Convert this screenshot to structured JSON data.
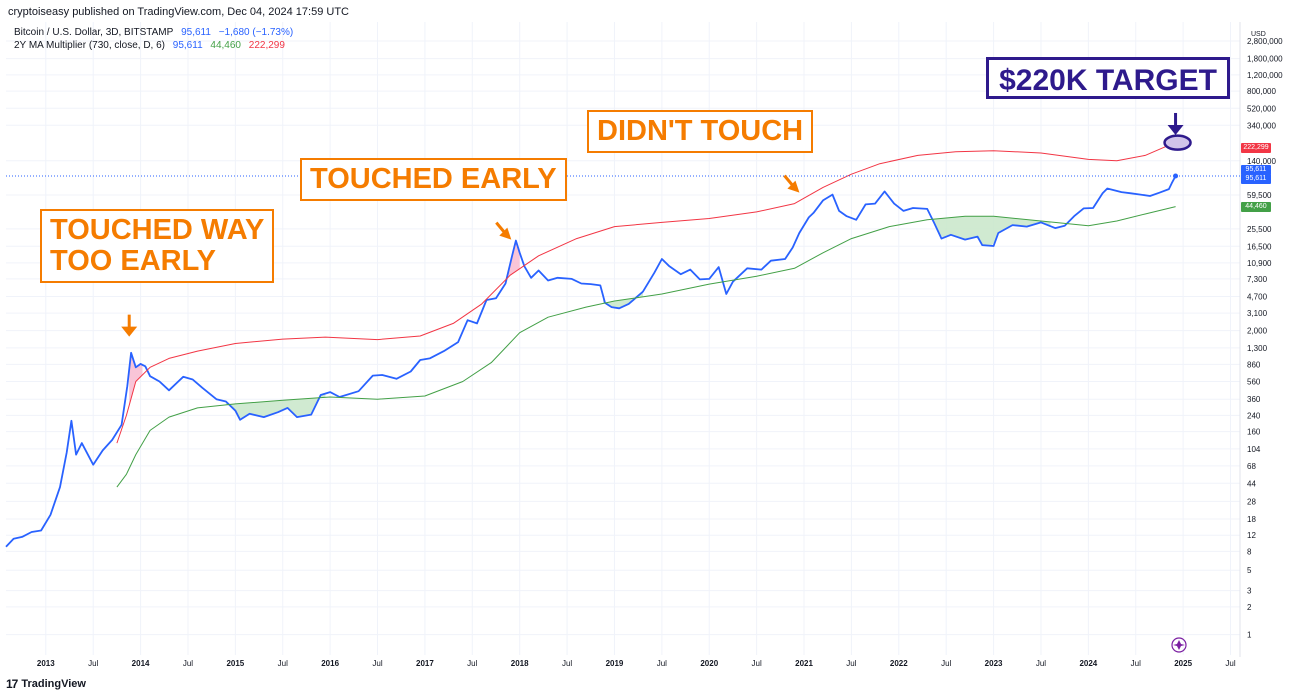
{
  "header": {
    "publisher": "cryptoiseasy published on TradingView.com, Dec 04, 2024 17:59 UTC"
  },
  "legend": {
    "symbol": "Bitcoin / U.S. Dollar, 3D, BITSTAMP",
    "symbol_price": "95,611",
    "symbol_change": "−1,680 (−1.73%)",
    "indicator": "2Y MA Multiplier (730, close, D, 6)",
    "ind_value_1": "95,611",
    "ind_value_2": "44,460",
    "ind_value_3": "222,299"
  },
  "annotations": {
    "touched_way_too_early": "TOUCHED WAY\nTOO EARLY",
    "touched_early": "TOUCHED EARLY",
    "didnt_touch": "DIDN'T TOUCH",
    "target": "$220K TARGET"
  },
  "price_tags": {
    "upper": "222,299",
    "price_1": "95,611",
    "price_2": "95,611",
    "lower": "44,460"
  },
  "footer": {
    "logo_text": "TradingView",
    "logo_mark": "17"
  },
  "colors": {
    "price": "#2962ff",
    "upper": "#f23645",
    "lower": "#43a047",
    "orange": "#f57c00",
    "target": "#2e1a8c"
  },
  "chart_data": {
    "type": "line",
    "scale": "log",
    "currency_label": "USD",
    "ylim": [
      0.6,
      4500000
    ],
    "y_ticks": [
      "2,800,000",
      "1,800,000",
      "1,200,000",
      "800,000",
      "520,000",
      "340,000",
      "140,000",
      "59,500",
      "25,500",
      "16,500",
      "10,900",
      "7,300",
      "4,700",
      "3,100",
      "2,000",
      "1,300",
      "860",
      "560",
      "360",
      "240",
      "160",
      "104",
      "68",
      "44",
      "28",
      "18",
      "12",
      "8",
      "5",
      "3",
      "2",
      "1"
    ],
    "x_ticks": [
      {
        "t": 2013.0,
        "label": "2013"
      },
      {
        "t": 2013.5,
        "label": "Jul"
      },
      {
        "t": 2014.0,
        "label": "2014"
      },
      {
        "t": 2014.5,
        "label": "Jul"
      },
      {
        "t": 2015.0,
        "label": "2015"
      },
      {
        "t": 2015.5,
        "label": "Jul"
      },
      {
        "t": 2016.0,
        "label": "2016"
      },
      {
        "t": 2016.5,
        "label": "Jul"
      },
      {
        "t": 2017.0,
        "label": "2017"
      },
      {
        "t": 2017.5,
        "label": "Jul"
      },
      {
        "t": 2018.0,
        "label": "2018"
      },
      {
        "t": 2018.5,
        "label": "Jul"
      },
      {
        "t": 2019.0,
        "label": "2019"
      },
      {
        "t": 2019.5,
        "label": "Jul"
      },
      {
        "t": 2020.0,
        "label": "2020"
      },
      {
        "t": 2020.5,
        "label": "Jul"
      },
      {
        "t": 2021.0,
        "label": "2021"
      },
      {
        "t": 2021.5,
        "label": "Jul"
      },
      {
        "t": 2022.0,
        "label": "2022"
      },
      {
        "t": 2022.5,
        "label": "Jul"
      },
      {
        "t": 2023.0,
        "label": "2023"
      },
      {
        "t": 2023.5,
        "label": "Jul"
      },
      {
        "t": 2024.0,
        "label": "2024"
      },
      {
        "t": 2024.5,
        "label": "Jul"
      },
      {
        "t": 2025.0,
        "label": "2025"
      },
      {
        "t": 2025.5,
        "label": "Jul"
      }
    ],
    "xlim": [
      2012.58,
      2025.6
    ],
    "series": [
      {
        "key": "btc_price",
        "color": "#2962ff",
        "points": [
          [
            2012.58,
            9
          ],
          [
            2012.66,
            11
          ],
          [
            2012.75,
            11.5
          ],
          [
            2012.85,
            13
          ],
          [
            2012.95,
            13.5
          ],
          [
            2013.05,
            20
          ],
          [
            2013.15,
            40
          ],
          [
            2013.22,
            95
          ],
          [
            2013.27,
            210
          ],
          [
            2013.32,
            90
          ],
          [
            2013.38,
            120
          ],
          [
            2013.5,
            70
          ],
          [
            2013.6,
            100
          ],
          [
            2013.7,
            130
          ],
          [
            2013.8,
            190
          ],
          [
            2013.86,
            500
          ],
          [
            2013.9,
            1150
          ],
          [
            2013.95,
            800
          ],
          [
            2014.0,
            870
          ],
          [
            2014.05,
            820
          ],
          [
            2014.1,
            640
          ],
          [
            2014.2,
            560
          ],
          [
            2014.3,
            450
          ],
          [
            2014.45,
            630
          ],
          [
            2014.55,
            590
          ],
          [
            2014.65,
            480
          ],
          [
            2014.8,
            360
          ],
          [
            2014.9,
            340
          ],
          [
            2015.0,
            270
          ],
          [
            2015.05,
            215
          ],
          [
            2015.15,
            250
          ],
          [
            2015.3,
            230
          ],
          [
            2015.45,
            260
          ],
          [
            2015.55,
            290
          ],
          [
            2015.65,
            230
          ],
          [
            2015.8,
            245
          ],
          [
            2015.9,
            400
          ],
          [
            2016.0,
            430
          ],
          [
            2016.1,
            380
          ],
          [
            2016.3,
            440
          ],
          [
            2016.45,
            650
          ],
          [
            2016.55,
            660
          ],
          [
            2016.7,
            600
          ],
          [
            2016.85,
            720
          ],
          [
            2016.95,
            960
          ],
          [
            2017.05,
            1000
          ],
          [
            2017.2,
            1200
          ],
          [
            2017.35,
            1500
          ],
          [
            2017.45,
            2600
          ],
          [
            2017.55,
            2400
          ],
          [
            2017.65,
            4300
          ],
          [
            2017.75,
            4500
          ],
          [
            2017.85,
            6500
          ],
          [
            2017.92,
            13000
          ],
          [
            2017.96,
            19000
          ],
          [
            2018.0,
            14000
          ],
          [
            2018.05,
            10000
          ],
          [
            2018.12,
            7500
          ],
          [
            2018.2,
            9000
          ],
          [
            2018.3,
            7000
          ],
          [
            2018.4,
            7500
          ],
          [
            2018.55,
            7300
          ],
          [
            2018.65,
            6500
          ],
          [
            2018.75,
            6400
          ],
          [
            2018.85,
            6200
          ],
          [
            2018.9,
            4000
          ],
          [
            2018.97,
            3600
          ],
          [
            2019.05,
            3500
          ],
          [
            2019.15,
            3900
          ],
          [
            2019.3,
            5300
          ],
          [
            2019.42,
            8500
          ],
          [
            2019.5,
            12000
          ],
          [
            2019.58,
            10000
          ],
          [
            2019.7,
            8200
          ],
          [
            2019.8,
            9200
          ],
          [
            2019.9,
            7200
          ],
          [
            2020.0,
            7300
          ],
          [
            2020.1,
            9800
          ],
          [
            2020.18,
            5000
          ],
          [
            2020.25,
            6800
          ],
          [
            2020.4,
            9500
          ],
          [
            2020.55,
            9200
          ],
          [
            2020.65,
            11500
          ],
          [
            2020.8,
            12000
          ],
          [
            2020.88,
            16000
          ],
          [
            2020.95,
            23000
          ],
          [
            2021.05,
            34000
          ],
          [
            2021.1,
            38000
          ],
          [
            2021.2,
            52000
          ],
          [
            2021.3,
            60000
          ],
          [
            2021.37,
            40000
          ],
          [
            2021.45,
            35000
          ],
          [
            2021.55,
            32000
          ],
          [
            2021.65,
            47000
          ],
          [
            2021.75,
            48000
          ],
          [
            2021.85,
            65000
          ],
          [
            2021.95,
            48000
          ],
          [
            2022.05,
            40000
          ],
          [
            2022.15,
            43000
          ],
          [
            2022.3,
            42000
          ],
          [
            2022.37,
            30000
          ],
          [
            2022.45,
            20000
          ],
          [
            2022.55,
            22000
          ],
          [
            2022.7,
            19500
          ],
          [
            2022.83,
            21000
          ],
          [
            2022.88,
            17000
          ],
          [
            2023.0,
            16600
          ],
          [
            2023.05,
            23000
          ],
          [
            2023.2,
            28000
          ],
          [
            2023.35,
            27000
          ],
          [
            2023.5,
            30000
          ],
          [
            2023.65,
            26000
          ],
          [
            2023.75,
            27500
          ],
          [
            2023.85,
            35000
          ],
          [
            2023.95,
            42500
          ],
          [
            2024.05,
            43000
          ],
          [
            2024.15,
            62000
          ],
          [
            2024.2,
            70000
          ],
          [
            2024.35,
            64000
          ],
          [
            2024.45,
            62000
          ],
          [
            2024.55,
            60000
          ],
          [
            2024.65,
            58000
          ],
          [
            2024.75,
            63000
          ],
          [
            2024.85,
            69000
          ],
          [
            2024.88,
            80000
          ],
          [
            2024.92,
            95611
          ]
        ]
      },
      {
        "key": "ma_upper",
        "color": "#f23645",
        "points": [
          [
            2013.75,
            120
          ],
          [
            2013.85,
            240
          ],
          [
            2013.95,
            560
          ],
          [
            2014.1,
            800
          ],
          [
            2014.3,
            1000
          ],
          [
            2014.6,
            1200
          ],
          [
            2015.0,
            1450
          ],
          [
            2015.5,
            1620
          ],
          [
            2015.95,
            1700
          ],
          [
            2016.5,
            1600
          ],
          [
            2016.95,
            1750
          ],
          [
            2017.3,
            2400
          ],
          [
            2017.6,
            3900
          ],
          [
            2017.9,
            8000
          ],
          [
            2018.2,
            13000
          ],
          [
            2018.6,
            20000
          ],
          [
            2019.0,
            27000
          ],
          [
            2019.5,
            30000
          ],
          [
            2020.0,
            33000
          ],
          [
            2020.5,
            39000
          ],
          [
            2020.9,
            48000
          ],
          [
            2021.2,
            72000
          ],
          [
            2021.5,
            100000
          ],
          [
            2021.8,
            130000
          ],
          [
            2022.2,
            160000
          ],
          [
            2022.6,
            175000
          ],
          [
            2023.0,
            180000
          ],
          [
            2023.5,
            170000
          ],
          [
            2024.0,
            145000
          ],
          [
            2024.3,
            140000
          ],
          [
            2024.6,
            160000
          ],
          [
            2024.92,
            222299
          ]
        ]
      },
      {
        "key": "ma_lower",
        "color": "#43a047",
        "points": [
          [
            2013.75,
            40
          ],
          [
            2013.85,
            55
          ],
          [
            2013.95,
            90
          ],
          [
            2014.1,
            165
          ],
          [
            2014.3,
            230
          ],
          [
            2014.6,
            290
          ],
          [
            2015.0,
            320
          ],
          [
            2015.5,
            350
          ],
          [
            2016.0,
            380
          ],
          [
            2016.5,
            360
          ],
          [
            2017.0,
            390
          ],
          [
            2017.4,
            560
          ],
          [
            2017.7,
            900
          ],
          [
            2018.0,
            1900
          ],
          [
            2018.3,
            2800
          ],
          [
            2018.7,
            3600
          ],
          [
            2019.0,
            4200
          ],
          [
            2019.5,
            5000
          ],
          [
            2020.0,
            6400
          ],
          [
            2020.5,
            7800
          ],
          [
            2020.9,
            9500
          ],
          [
            2021.2,
            14000
          ],
          [
            2021.5,
            20000
          ],
          [
            2021.9,
            27000
          ],
          [
            2022.3,
            32000
          ],
          [
            2022.7,
            35000
          ],
          [
            2023.0,
            35000
          ],
          [
            2023.5,
            31000
          ],
          [
            2024.0,
            27500
          ],
          [
            2024.3,
            31000
          ],
          [
            2024.6,
            37000
          ],
          [
            2024.92,
            44460
          ]
        ]
      }
    ],
    "shaded_regions": [
      {
        "key": "above-upper-2013",
        "color": "#f8bbd0",
        "from": 2013.88,
        "to": 2014.02,
        "between": [
          "btc_price",
          "ma_upper"
        ]
      },
      {
        "key": "above-upper-2017",
        "color": "#f8bbd0",
        "from": 2017.88,
        "to": 2018.0,
        "between": [
          "btc_price",
          "ma_upper"
        ]
      },
      {
        "key": "below-lower-2015",
        "color": "#c8e6c9",
        "from": 2014.9,
        "to": 2015.95,
        "between": [
          "btc_price",
          "ma_lower"
        ]
      },
      {
        "key": "below-lower-2018",
        "color": "#c8e6c9",
        "from": 2018.88,
        "to": 2019.3,
        "between": [
          "btc_price",
          "ma_lower"
        ]
      },
      {
        "key": "below-lower-2022",
        "color": "#c8e6c9",
        "from": 2022.35,
        "to": 2023.6,
        "between": [
          "btc_price",
          "ma_lower"
        ]
      }
    ],
    "target_value": 220000,
    "target_time": 2024.92,
    "last_price": 95611,
    "arrows": [
      {
        "key": "arrow-2013",
        "t": 2013.88,
        "v": 2000
      },
      {
        "key": "arrow-2017",
        "t": 2017.88,
        "v": 21000
      },
      {
        "key": "arrow-2021",
        "t": 2020.92,
        "v": 68000
      },
      {
        "key": "arrow-target",
        "t": 2024.92,
        "v": 310000
      }
    ]
  }
}
